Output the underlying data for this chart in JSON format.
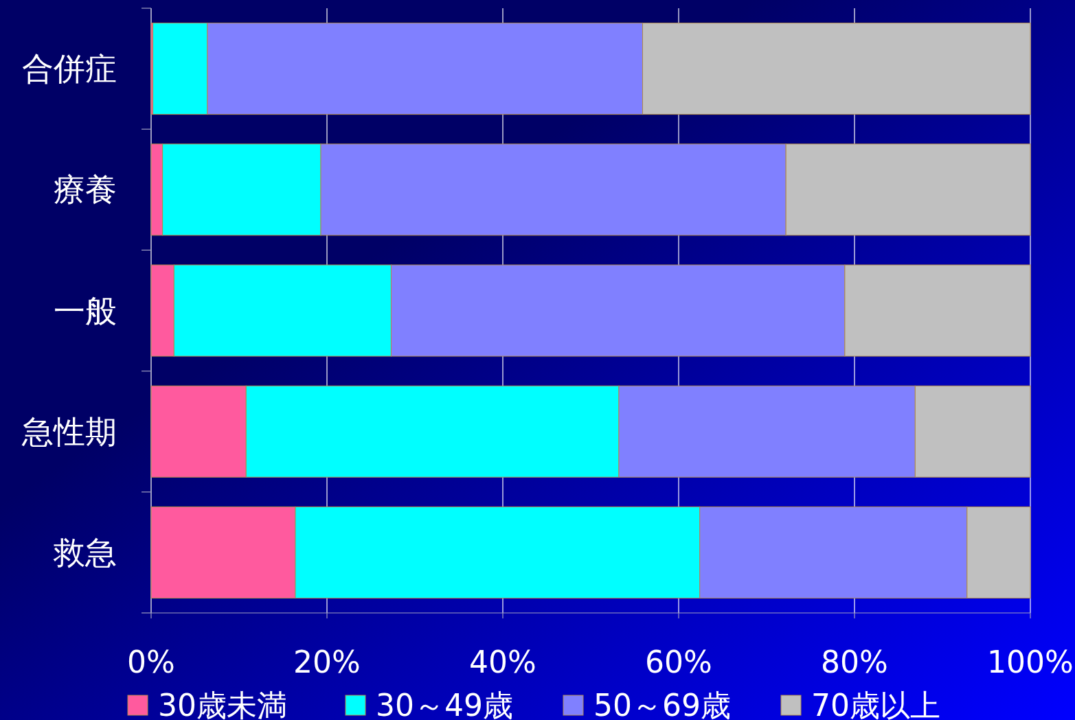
{
  "chart_data": {
    "type": "bar",
    "orientation": "horizontal",
    "stacked": true,
    "categories": [
      "合併症",
      "療養",
      "一般",
      "急性期",
      "救急"
    ],
    "series": [
      {
        "name": "30歳未満",
        "color": "#ff5a9e",
        "values": [
          0.2,
          1.3,
          2.6,
          10.8,
          16.4
        ]
      },
      {
        "name": "30～49歳",
        "color": "#00ffff",
        "values": [
          6.2,
          18.0,
          24.7,
          42.4,
          46.0
        ]
      },
      {
        "name": "50～69歳",
        "color": "#8080ff",
        "values": [
          49.5,
          52.9,
          51.6,
          33.7,
          30.4
        ]
      },
      {
        "name": "70歳以上",
        "color": "#c0c0c0",
        "values": [
          44.1,
          27.8,
          21.1,
          13.1,
          7.2
        ]
      }
    ],
    "xlim": [
      0,
      100
    ],
    "xticks": [
      {
        "value": 0,
        "label": "0%"
      },
      {
        "value": 20,
        "label": "20%"
      },
      {
        "value": 40,
        "label": "40%"
      },
      {
        "value": 60,
        "label": "60%"
      },
      {
        "value": 80,
        "label": "80%"
      },
      {
        "value": 100,
        "label": "100%"
      }
    ],
    "grid": "x",
    "legend": "bottom"
  }
}
